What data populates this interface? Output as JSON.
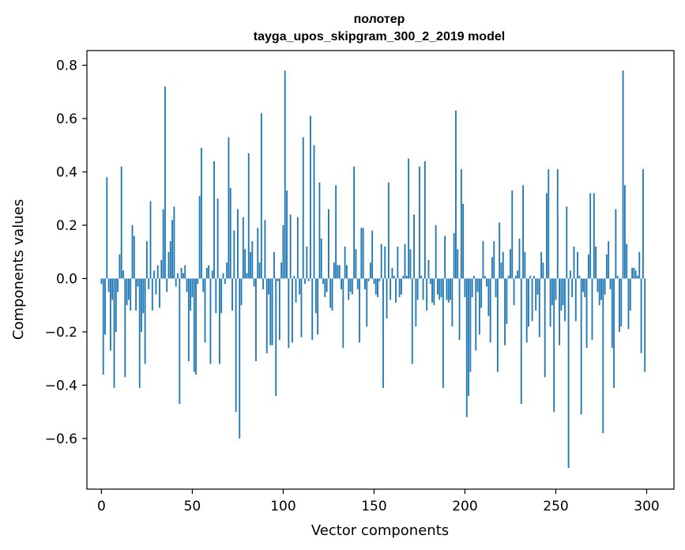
{
  "chart_data": {
    "type": "bar",
    "title": "полотер",
    "subtitle": "tayga_upos_skipgram_300_2_2019 model",
    "xlabel": "Vector components",
    "ylabel": "Components values",
    "xlim": [
      -8,
      315
    ],
    "ylim": [
      -0.79,
      0.855
    ],
    "xticks": [
      0,
      50,
      100,
      150,
      200,
      250,
      300
    ],
    "yticks": [
      -0.6,
      -0.4,
      -0.2,
      0.0,
      0.2,
      0.4,
      0.6,
      0.8
    ],
    "ytick_labels": [
      "−0.6",
      "−0.4",
      "−0.2",
      "0.0",
      "0.2",
      "0.4",
      "0.6",
      "0.8"
    ],
    "bar_color": "#1f77b4",
    "grid": false,
    "values": [
      -0.02,
      -0.36,
      -0.21,
      0.38,
      -0.05,
      -0.27,
      -0.08,
      -0.41,
      -0.2,
      -0.05,
      0.09,
      0.42,
      0.03,
      -0.37,
      -0.1,
      -0.08,
      -0.12,
      0.2,
      0.16,
      -0.12,
      -0.03,
      -0.41,
      -0.2,
      -0.13,
      -0.32,
      0.14,
      -0.04,
      0.29,
      -0.12,
      0.03,
      -0.06,
      0.05,
      -0.11,
      0.07,
      0.26,
      0.72,
      -0.05,
      0.1,
      0.14,
      0.22,
      0.27,
      -0.03,
      0.02,
      -0.47,
      0.04,
      0.02,
      0.05,
      -0.05,
      -0.31,
      -0.12,
      -0.07,
      -0.35,
      -0.36,
      -0.02,
      0.31,
      0.49,
      -0.05,
      -0.24,
      0.04,
      0.05,
      -0.32,
      0.03,
      0.44,
      -0.13,
      0.3,
      -0.32,
      -0.13,
      0.02,
      -0.02,
      0.06,
      0.53,
      0.34,
      -0.12,
      0.18,
      -0.5,
      0.26,
      -0.6,
      -0.1,
      0.23,
      0.11,
      0.02,
      0.47,
      0.1,
      0.14,
      -0.03,
      -0.31,
      0.19,
      0.06,
      0.62,
      -0.04,
      0.22,
      -0.28,
      -0.06,
      -0.25,
      -0.25,
      0.1,
      -0.44,
      -0.01,
      -0.23,
      0.06,
      0.2,
      0.78,
      0.33,
      -0.26,
      0.24,
      -0.24,
      0.01,
      -0.09,
      0.23,
      -0.06,
      -0.22,
      0.53,
      -0.02,
      0.12,
      -0.01,
      0.61,
      -0.23,
      0.5,
      -0.13,
      -0.21,
      0.36,
      0.15,
      -0.02,
      -0.07,
      -0.05,
      0.26,
      -0.11,
      -0.12,
      0.06,
      0.35,
      0.05,
      0.05,
      -0.04,
      -0.26,
      0.12,
      0.05,
      -0.08,
      -0.05,
      -0.06,
      0.42,
      0.11,
      -0.04,
      -0.24,
      0.19,
      0.19,
      -0.04,
      -0.18,
      -0.01,
      0.06,
      0.18,
      -0.02,
      -0.06,
      -0.07,
      -0.01,
      0.13,
      -0.41,
      0.12,
      -0.15,
      0.36,
      -0.08,
      0.04,
      0.01,
      -0.09,
      0.12,
      -0.07,
      -0.06,
      0.01,
      0.13,
      0.01,
      0.45,
      0.11,
      -0.32,
      0.24,
      -0.18,
      -0.08,
      0.42,
      0.01,
      -0.08,
      0.44,
      -0.12,
      0.07,
      -0.02,
      -0.09,
      -0.1,
      0.2,
      -0.06,
      -0.08,
      -0.07,
      -0.41,
      0.16,
      -0.08,
      -0.09,
      -0.08,
      -0.18,
      0.17,
      0.63,
      0.11,
      -0.23,
      0.41,
      0.28,
      -0.07,
      -0.52,
      -0.44,
      -0.35,
      -0.07,
      0.01,
      -0.27,
      -0.05,
      -0.21,
      -0.11,
      0.14,
      0.01,
      -0.03,
      -0.14,
      -0.24,
      0.08,
      0.14,
      -0.07,
      -0.35,
      0.21,
      0.06,
      0.1,
      -0.25,
      -0.17,
      0.01,
      0.11,
      0.33,
      -0.1,
      0.01,
      0.03,
      0.15,
      -0.47,
      0.35,
      0.1,
      -0.24,
      -0.18,
      0.01,
      -0.16,
      0.01,
      -0.12,
      -0.06,
      -0.22,
      0.1,
      0.06,
      -0.37,
      0.32,
      0.41,
      -0.18,
      -0.1,
      -0.5,
      -0.08,
      0.41,
      -0.25,
      -0.12,
      -0.1,
      -0.16,
      0.27,
      -0.71,
      0.03,
      -0.07,
      0.12,
      -0.16,
      0.1,
      0.01,
      -0.51,
      -0.05,
      -0.07,
      -0.26,
      0.09,
      0.32,
      -0.23,
      0.32,
      0.12,
      -0.05,
      -0.1,
      -0.08,
      -0.58,
      -0.06,
      0.09,
      0.14,
      -0.04,
      -0.26,
      -0.41,
      0.26,
      0.01,
      -0.2,
      -0.18,
      0.78,
      0.35,
      0.13,
      -0.19,
      -0.12,
      0.04,
      0.04,
      0.03,
      0.01,
      0.1,
      -0.28,
      0.41,
      -0.35
    ]
  }
}
